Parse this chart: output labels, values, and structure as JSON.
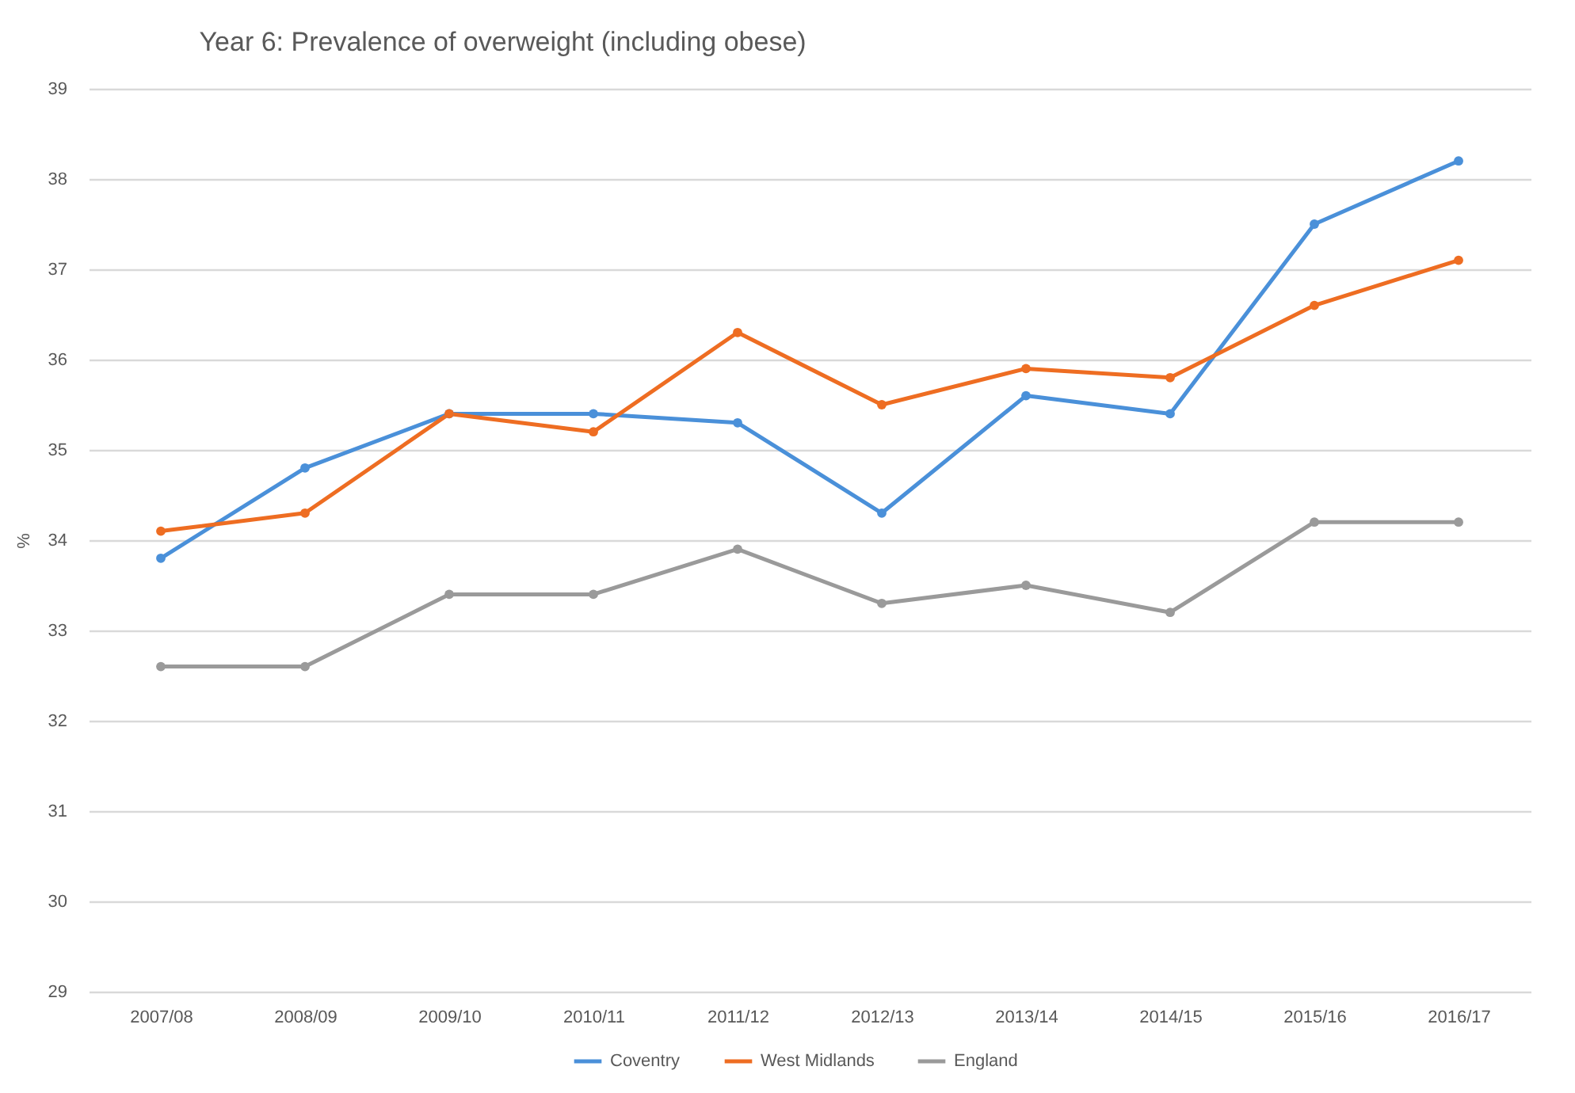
{
  "chart_data": {
    "type": "line",
    "title": "Year 6: Prevalence of overweight (including obese)",
    "ylabel": "%",
    "categories": [
      "2007/08",
      "2008/09",
      "2009/10",
      "2010/11",
      "2011/12",
      "2012/13",
      "2013/14",
      "2014/15",
      "2015/16",
      "2016/17"
    ],
    "series": [
      {
        "name": "Coventry",
        "color": "#4a90d9",
        "values": [
          33.8,
          34.8,
          35.4,
          35.4,
          35.3,
          34.3,
          35.6,
          35.4,
          37.5,
          38.2
        ]
      },
      {
        "name": "West Midlands",
        "color": "#ee6d22",
        "values": [
          34.1,
          34.3,
          35.4,
          35.2,
          36.3,
          35.5,
          35.9,
          35.8,
          36.6,
          37.1
        ]
      },
      {
        "name": "England",
        "color": "#9a9a9a",
        "values": [
          32.6,
          32.6,
          33.4,
          33.4,
          33.9,
          33.3,
          33.5,
          33.2,
          34.2,
          34.2
        ]
      }
    ],
    "ylim": [
      29,
      39
    ],
    "yticks": [
      29,
      30,
      31,
      32,
      33,
      34,
      35,
      36,
      37,
      38,
      39
    ],
    "grid": "y",
    "legend": "bottom",
    "marker": "circle",
    "line_style": "solid"
  }
}
